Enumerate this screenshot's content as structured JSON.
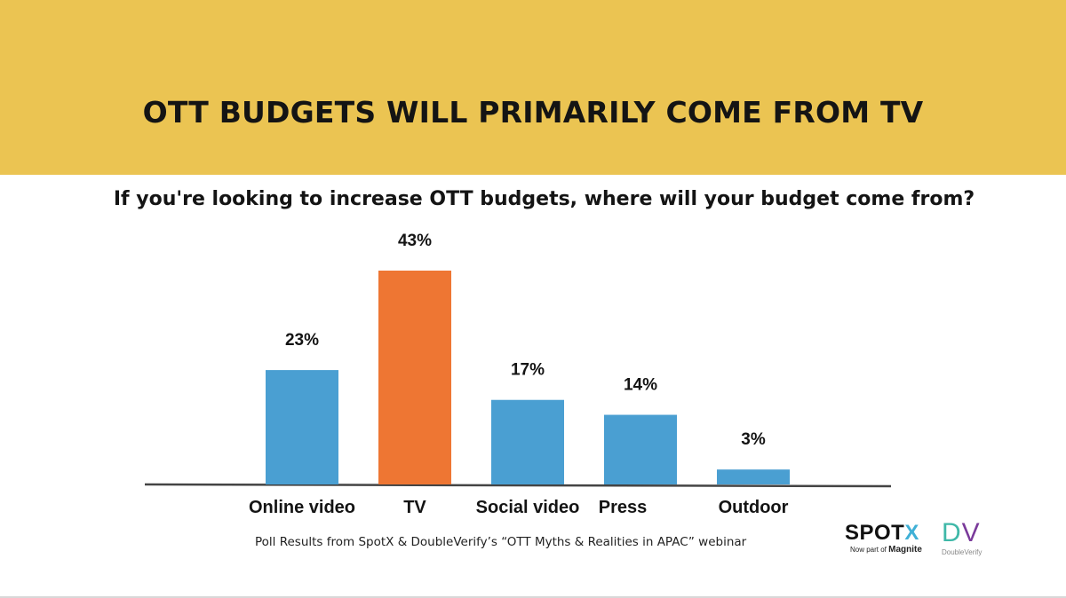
{
  "header": {
    "title": "OTT BUDGETS WILL PRIMARILY COME FROM TV"
  },
  "chart_data": {
    "type": "bar",
    "title": "If you're looking to increase OTT budgets, where will your budget come from?",
    "categories": [
      "Online video",
      "TV",
      "Social video",
      "Press",
      "Outdoor"
    ],
    "values": [
      23,
      43,
      17,
      14,
      3
    ],
    "value_labels": [
      "23%",
      "43%",
      "17%",
      "14%",
      "3%"
    ],
    "unit": "%",
    "highlight_category": "TV",
    "colors": {
      "default": "#4a9fd2",
      "highlight": "#ee7633",
      "axis": "#444444"
    },
    "ylim": [
      0,
      43
    ],
    "grid": false,
    "legend": "none"
  },
  "footer": {
    "caption": "Poll Results from SpotX & DoubleVerify’s “OTT Myths & Realities in APAC” webinar"
  },
  "logos": {
    "spotx": {
      "word_main": "SPOT",
      "word_accent": "X",
      "sub_prefix": "Now part of ",
      "sub_brand": "Magnite"
    },
    "doubleverify": {
      "letter_d": "D",
      "letter_v": "V",
      "sub": "DoubleVerify"
    }
  }
}
